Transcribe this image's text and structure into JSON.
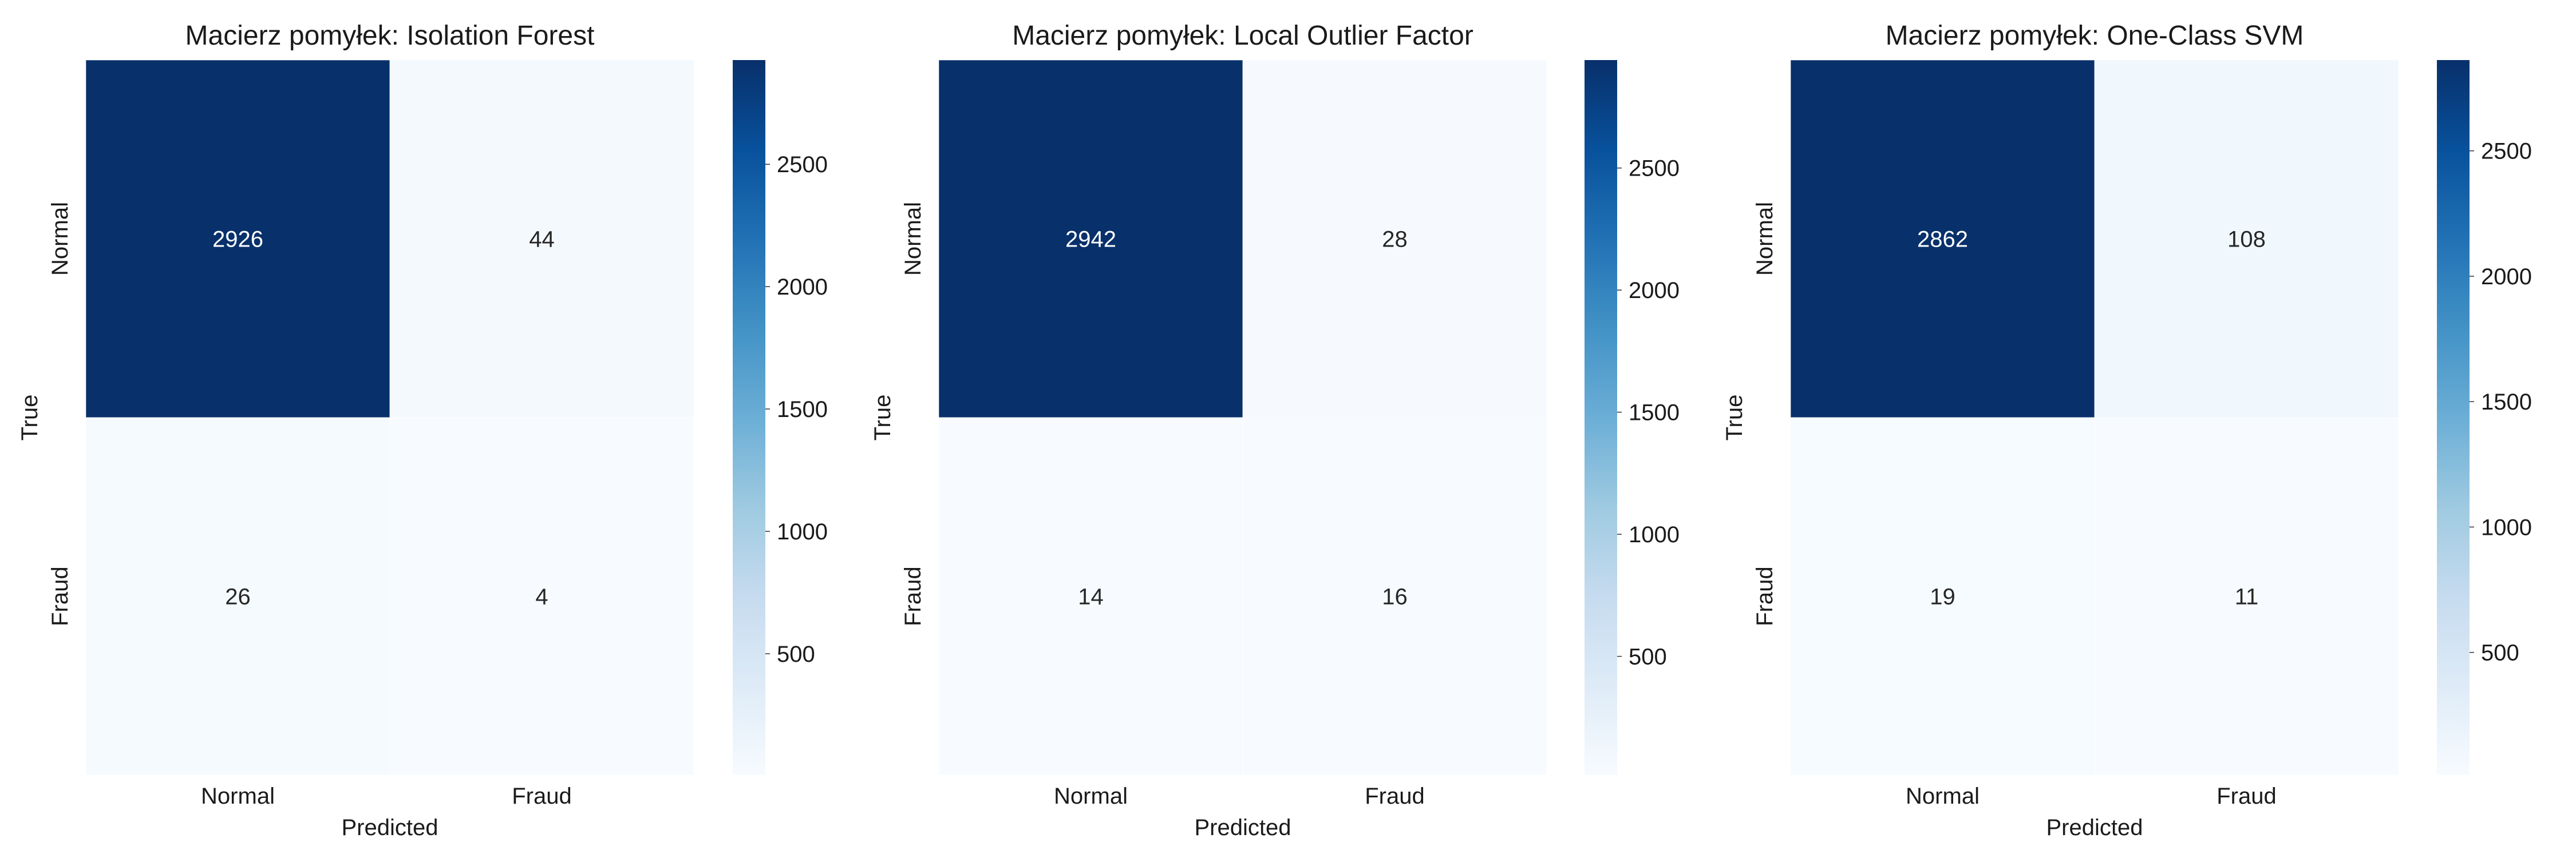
{
  "chart_data": [
    {
      "type": "heatmap",
      "title": "Macierz pomyłek: Isolation Forest",
      "xlabel": "Predicted",
      "ylabel": "True",
      "x_categories": [
        "Normal",
        "Fraud"
      ],
      "y_categories": [
        "Normal",
        "Fraud"
      ],
      "values": [
        [
          2926,
          44
        ],
        [
          26,
          4
        ]
      ],
      "colorbar": {
        "min": 4,
        "max": 2926,
        "ticks": [
          500,
          1000,
          1500,
          2000,
          2500
        ],
        "colormap": "Blues"
      }
    },
    {
      "type": "heatmap",
      "title": "Macierz pomyłek: Local Outlier Factor",
      "xlabel": "Predicted",
      "ylabel": "True",
      "x_categories": [
        "Normal",
        "Fraud"
      ],
      "y_categories": [
        "Normal",
        "Fraud"
      ],
      "values": [
        [
          2942,
          28
        ],
        [
          14,
          16
        ]
      ],
      "colorbar": {
        "min": 14,
        "max": 2942,
        "ticks": [
          500,
          1000,
          1500,
          2000,
          2500
        ],
        "colormap": "Blues"
      }
    },
    {
      "type": "heatmap",
      "title": "Macierz pomyłek: One-Class SVM",
      "xlabel": "Predicted",
      "ylabel": "True",
      "x_categories": [
        "Normal",
        "Fraud"
      ],
      "y_categories": [
        "Normal",
        "Fraud"
      ],
      "values": [
        [
          2862,
          108
        ],
        [
          19,
          11
        ]
      ],
      "colorbar": {
        "min": 11,
        "max": 2862,
        "ticks": [
          500,
          1000,
          1500,
          2000,
          2500
        ],
        "colormap": "Blues"
      }
    }
  ]
}
